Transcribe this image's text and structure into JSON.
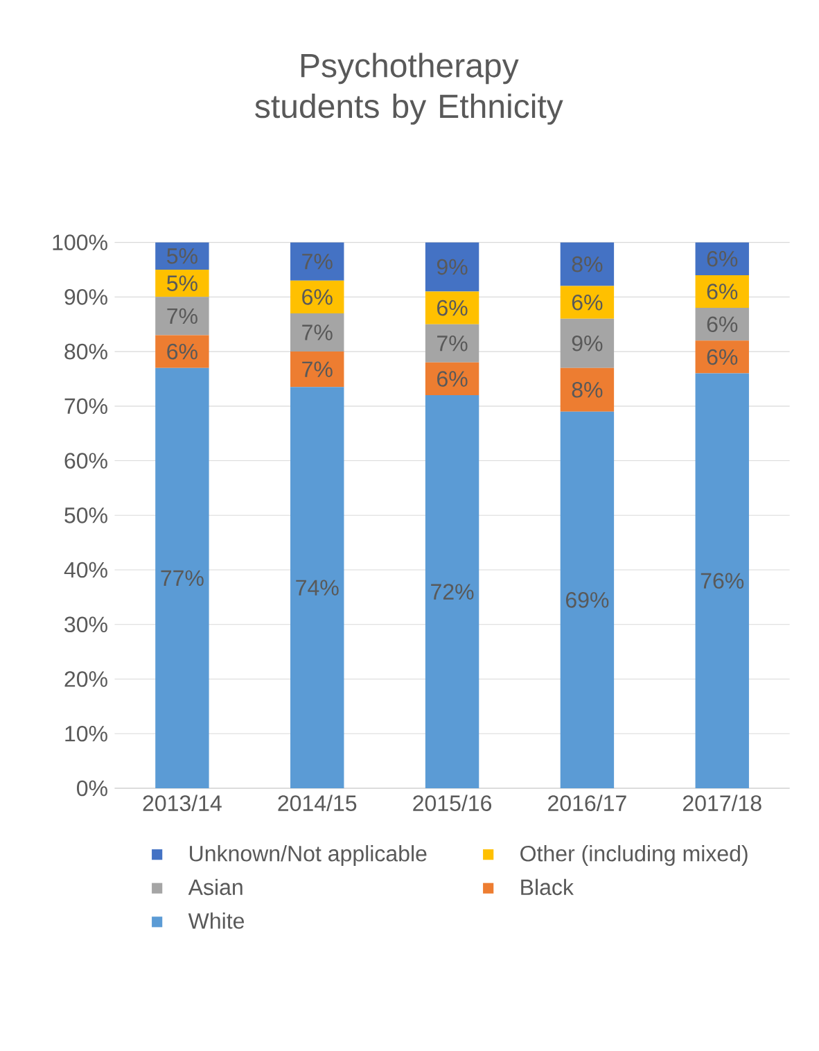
{
  "chart_data": {
    "type": "bar",
    "stacked": true,
    "title": "Psychotherapy students by Ethnicity",
    "categories": [
      "2013/14",
      "2014/15",
      "2015/16",
      "2016/17",
      "2017/18"
    ],
    "series": [
      {
        "name": "White",
        "color": "#5b9bd5",
        "values": [
          77,
          73.5,
          72,
          69,
          76
        ],
        "value_labels": [
          "77%",
          "74%",
          "72%",
          "69%",
          "76%"
        ]
      },
      {
        "name": "Black",
        "color": "#ed7d31",
        "values": [
          6,
          6.5,
          6,
          8,
          6
        ],
        "value_labels": [
          "6%",
          "7%",
          "6%",
          "8%",
          "6%"
        ]
      },
      {
        "name": "Asian",
        "color": "#a5a5a5",
        "values": [
          7,
          7,
          7,
          9,
          6
        ],
        "value_labels": [
          "7%",
          "7%",
          "7%",
          "9%",
          "6%"
        ]
      },
      {
        "name": "Other (including mixed)",
        "color": "#ffc000",
        "values": [
          5,
          6,
          6,
          6,
          6
        ],
        "value_labels": [
          "5%",
          "6%",
          "6%",
          "6%",
          "6%"
        ]
      },
      {
        "name": "Unknown/Not applicable",
        "color": "#4472c4",
        "values": [
          5,
          7,
          9,
          8,
          6
        ],
        "value_labels": [
          "5%",
          "7%",
          "9%",
          "8%",
          "6%"
        ]
      }
    ],
    "ylim": [
      0,
      100
    ],
    "yticks": [
      {
        "value": 0,
        "label": "0%"
      },
      {
        "value": 10,
        "label": "10%"
      },
      {
        "value": 20,
        "label": "20%"
      },
      {
        "value": 30,
        "label": "30%"
      },
      {
        "value": 40,
        "label": "40%"
      },
      {
        "value": 50,
        "label": "50%"
      },
      {
        "value": 60,
        "label": "60%"
      },
      {
        "value": 70,
        "label": "70%"
      },
      {
        "value": 80,
        "label": "80%"
      },
      {
        "value": 90,
        "label": "90%"
      },
      {
        "value": 100,
        "label": "100%"
      }
    ],
    "grid": "y",
    "legend": "bottom"
  }
}
